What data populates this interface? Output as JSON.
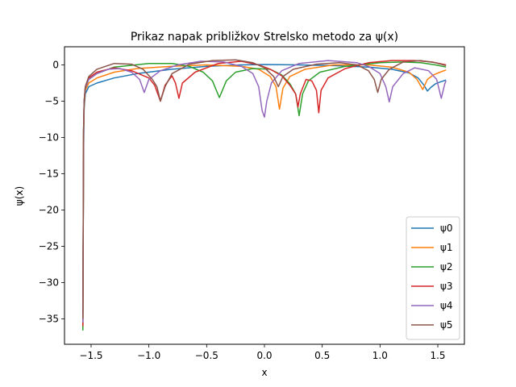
{
  "chart_data": {
    "type": "line",
    "title": "Prikaz napak približkov Strelsko metodo za ψ(x)",
    "xlabel": "x",
    "ylabel": "ψ(x)",
    "xlim": [
      -1.73,
      1.73
    ],
    "ylim": [
      -38.5,
      2.5
    ],
    "xticks": [
      -1.5,
      -1.0,
      -0.5,
      0.0,
      0.5,
      1.0,
      1.5
    ],
    "xtick_labels": [
      "−1.5",
      "−1.0",
      "−0.5",
      "0.0",
      "0.5",
      "1.0",
      "1.5"
    ],
    "yticks": [
      0,
      -5,
      -10,
      -15,
      -20,
      -25,
      -30,
      -35
    ],
    "ytick_labels": [
      "0",
      "−5",
      "−10",
      "−15",
      "−20",
      "−25",
      "−30",
      "−35"
    ],
    "grid": false,
    "legend_position": "lower-right",
    "series": [
      {
        "name": "ψ0",
        "color": "#1f77b4",
        "points": [
          [
            -1.571,
            -35.8
          ],
          [
            -1.565,
            -12
          ],
          [
            -1.56,
            -6
          ],
          [
            -1.55,
            -4
          ],
          [
            -1.52,
            -3
          ],
          [
            -1.45,
            -2.5
          ],
          [
            -1.3,
            -1.8
          ],
          [
            -1.1,
            -1.2
          ],
          [
            -0.8,
            -0.6
          ],
          [
            -0.5,
            -0.2
          ],
          [
            -0.2,
            0.0
          ],
          [
            0.0,
            0.05
          ],
          [
            0.3,
            0.0
          ],
          [
            0.6,
            -0.1
          ],
          [
            0.9,
            -0.3
          ],
          [
            1.1,
            -0.6
          ],
          [
            1.25,
            -1.1
          ],
          [
            1.33,
            -1.8
          ],
          [
            1.38,
            -2.8
          ],
          [
            1.41,
            -3.6
          ],
          [
            1.44,
            -3.1
          ],
          [
            1.48,
            -2.6
          ],
          [
            1.53,
            -2.3
          ],
          [
            1.571,
            -2.1
          ]
        ]
      },
      {
        "name": "ψ1",
        "color": "#ff7f0e",
        "points": [
          [
            -1.571,
            -36.2
          ],
          [
            -1.565,
            -10
          ],
          [
            -1.56,
            -5.5
          ],
          [
            -1.55,
            -3.5
          ],
          [
            -1.52,
            -2.5
          ],
          [
            -1.45,
            -1.8
          ],
          [
            -1.3,
            -1.0
          ],
          [
            -1.1,
            -0.5
          ],
          [
            -0.8,
            -0.2
          ],
          [
            -0.5,
            0.0
          ],
          [
            -0.2,
            -0.2
          ],
          [
            -0.05,
            -0.6
          ],
          [
            0.05,
            -1.6
          ],
          [
            0.1,
            -3.0
          ],
          [
            0.13,
            -6.1
          ],
          [
            0.16,
            -3.2
          ],
          [
            0.22,
            -1.6
          ],
          [
            0.35,
            -0.6
          ],
          [
            0.6,
            0.0
          ],
          [
            0.9,
            0.0
          ],
          [
            1.1,
            -0.3
          ],
          [
            1.25,
            -1.0
          ],
          [
            1.32,
            -2.0
          ],
          [
            1.37,
            -3.4
          ],
          [
            1.41,
            -2.0
          ],
          [
            1.46,
            -1.4
          ],
          [
            1.52,
            -1.0
          ],
          [
            1.571,
            -0.7
          ]
        ]
      },
      {
        "name": "ψ2",
        "color": "#2ca02c",
        "points": [
          [
            -1.571,
            -36.6
          ],
          [
            -1.565,
            -9
          ],
          [
            -1.56,
            -5
          ],
          [
            -1.55,
            -3.2
          ],
          [
            -1.52,
            -2.0
          ],
          [
            -1.45,
            -1.2
          ],
          [
            -1.3,
            -0.3
          ],
          [
            -1.0,
            0.2
          ],
          [
            -0.8,
            0.2
          ],
          [
            -0.65,
            -0.2
          ],
          [
            -0.53,
            -1.0
          ],
          [
            -0.45,
            -2.2
          ],
          [
            -0.39,
            -4.5
          ],
          [
            -0.33,
            -2.2
          ],
          [
            -0.25,
            -1.0
          ],
          [
            -0.1,
            -0.5
          ],
          [
            0.05,
            -0.6
          ],
          [
            0.15,
            -1.4
          ],
          [
            0.22,
            -2.6
          ],
          [
            0.27,
            -4.0
          ],
          [
            0.3,
            -7.0
          ],
          [
            0.33,
            -4.0
          ],
          [
            0.38,
            -2.2
          ],
          [
            0.48,
            -1.0
          ],
          [
            0.7,
            -0.2
          ],
          [
            1.0,
            0.3
          ],
          [
            1.2,
            0.4
          ],
          [
            1.35,
            0.3
          ],
          [
            1.48,
            0.0
          ],
          [
            1.571,
            -0.3
          ]
        ]
      },
      {
        "name": "ψ3",
        "color": "#d62728",
        "points": [
          [
            -1.571,
            -36.0
          ],
          [
            -1.565,
            -9
          ],
          [
            -1.56,
            -5
          ],
          [
            -1.55,
            -3.0
          ],
          [
            -1.52,
            -1.8
          ],
          [
            -1.45,
            -1.0
          ],
          [
            -1.3,
            -0.4
          ],
          [
            -1.15,
            -0.8
          ],
          [
            -1.0,
            -1.8
          ],
          [
            -0.95,
            -2.8
          ],
          [
            -0.9,
            -5.0
          ],
          [
            -0.86,
            -2.8
          ],
          [
            -0.8,
            -1.5
          ],
          [
            -0.77,
            -2.5
          ],
          [
            -0.74,
            -4.6
          ],
          [
            -0.71,
            -2.5
          ],
          [
            -0.6,
            -1.0
          ],
          [
            -0.4,
            0.2
          ],
          [
            -0.2,
            0.5
          ],
          [
            -0.05,
            0.0
          ],
          [
            0.05,
            -0.6
          ],
          [
            0.15,
            -1.5
          ],
          [
            0.22,
            -2.8
          ],
          [
            0.27,
            -4.0
          ],
          [
            0.29,
            -5.8
          ],
          [
            0.31,
            -4.0
          ],
          [
            0.36,
            -2.0
          ],
          [
            0.41,
            -2.2
          ],
          [
            0.45,
            -3.5
          ],
          [
            0.47,
            -6.6
          ],
          [
            0.49,
            -3.5
          ],
          [
            0.55,
            -1.8
          ],
          [
            0.7,
            -0.5
          ],
          [
            0.9,
            0.3
          ],
          [
            1.1,
            0.6
          ],
          [
            1.3,
            0.6
          ],
          [
            1.45,
            0.4
          ],
          [
            1.571,
            0.0
          ]
        ]
      },
      {
        "name": "ψ4",
        "color": "#9467bd",
        "points": [
          [
            -1.571,
            -35.5
          ],
          [
            -1.565,
            -9
          ],
          [
            -1.56,
            -5
          ],
          [
            -1.55,
            -3.2
          ],
          [
            -1.52,
            -2.0
          ],
          [
            -1.45,
            -1.2
          ],
          [
            -1.35,
            -0.6
          ],
          [
            -1.25,
            -0.5
          ],
          [
            -1.15,
            -1.0
          ],
          [
            -1.08,
            -2.0
          ],
          [
            -1.04,
            -3.8
          ],
          [
            -1.0,
            -2.0
          ],
          [
            -0.9,
            -0.8
          ],
          [
            -0.75,
            0.0
          ],
          [
            -0.55,
            0.5
          ],
          [
            -0.35,
            0.4
          ],
          [
            -0.2,
            -0.2
          ],
          [
            -0.1,
            -1.2
          ],
          [
            -0.05,
            -3.0
          ],
          [
            -0.02,
            -6.3
          ],
          [
            0.0,
            -7.2
          ],
          [
            0.02,
            -5.0
          ],
          [
            0.06,
            -2.5
          ],
          [
            0.15,
            -0.8
          ],
          [
            0.3,
            0.2
          ],
          [
            0.55,
            0.6
          ],
          [
            0.8,
            0.3
          ],
          [
            0.9,
            -0.2
          ],
          [
            1.0,
            -1.2
          ],
          [
            1.05,
            -3.0
          ],
          [
            1.08,
            -5.1
          ],
          [
            1.11,
            -3.0
          ],
          [
            1.2,
            -1.2
          ],
          [
            1.3,
            -0.4
          ],
          [
            1.42,
            -0.8
          ],
          [
            1.49,
            -2.0
          ],
          [
            1.53,
            -4.6
          ],
          [
            1.56,
            -2.6
          ],
          [
            1.571,
            -2.2
          ]
        ]
      },
      {
        "name": "ψ5",
        "color": "#8c564b",
        "points": [
          [
            -1.571,
            -35.0
          ],
          [
            -1.565,
            -9
          ],
          [
            -1.56,
            -5
          ],
          [
            -1.55,
            -3.0
          ],
          [
            -1.52,
            -1.6
          ],
          [
            -1.45,
            -0.6
          ],
          [
            -1.3,
            0.2
          ],
          [
            -1.15,
            0.1
          ],
          [
            -1.05,
            -0.6
          ],
          [
            -0.97,
            -2.0
          ],
          [
            -0.93,
            -3.0
          ],
          [
            -0.9,
            -5.0
          ],
          [
            -0.86,
            -3.0
          ],
          [
            -0.8,
            -1.2
          ],
          [
            -0.65,
            0.1
          ],
          [
            -0.45,
            0.6
          ],
          [
            -0.25,
            0.7
          ],
          [
            -0.1,
            0.3
          ],
          [
            0.0,
            -0.4
          ],
          [
            0.08,
            -1.6
          ],
          [
            0.12,
            -3.0
          ],
          [
            0.16,
            -1.6
          ],
          [
            0.25,
            -0.6
          ],
          [
            0.45,
            0.1
          ],
          [
            0.65,
            0.3
          ],
          [
            0.8,
            0.0
          ],
          [
            0.9,
            -0.8
          ],
          [
            0.95,
            -2.0
          ],
          [
            0.98,
            -3.8
          ],
          [
            1.01,
            -2.0
          ],
          [
            1.08,
            -0.6
          ],
          [
            1.2,
            0.4
          ],
          [
            1.35,
            0.6
          ],
          [
            1.48,
            0.3
          ],
          [
            1.571,
            -0.1
          ]
        ]
      }
    ]
  }
}
